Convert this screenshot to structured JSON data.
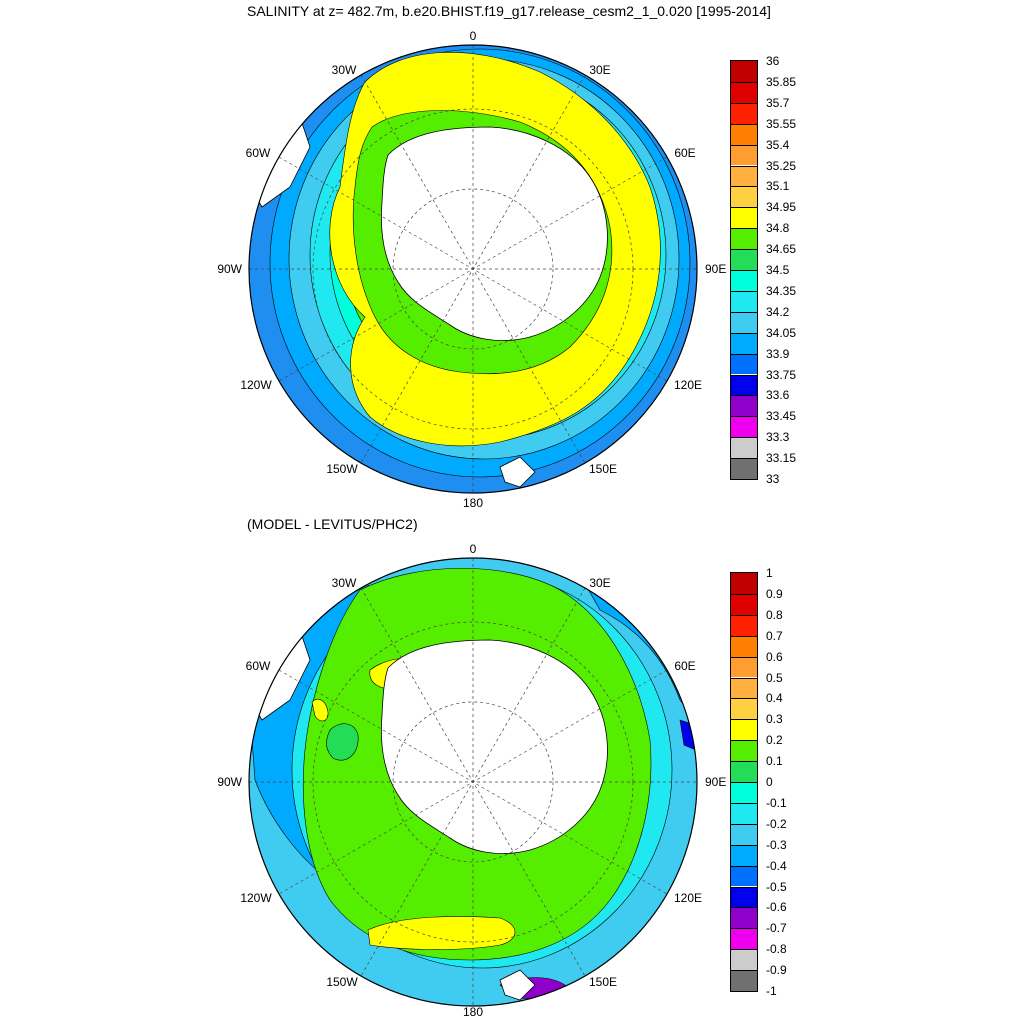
{
  "top_panel": {
    "title": "SALINITY at z= 482.7m, b.e20.BHIST.f19_g17.release_cesm2_1_0.020 [1995-2014]",
    "lon_labels": [
      "0",
      "30E",
      "60E",
      "90E",
      "120E",
      "150E",
      "180",
      "150W",
      "120W",
      "90W",
      "60W",
      "30W"
    ],
    "colorbar": {
      "labels": [
        "36",
        "35.85",
        "35.7",
        "35.55",
        "35.4",
        "35.25",
        "35.1",
        "34.95",
        "34.8",
        "34.65",
        "34.5",
        "34.35",
        "34.2",
        "34.05",
        "33.9",
        "33.75",
        "33.6",
        "33.45",
        "33.3",
        "33.15",
        "33"
      ],
      "colors": [
        "#c00000",
        "#e00000",
        "#ff2000",
        "#ff8000",
        "#ff9e30",
        "#ffb040",
        "#ffd040",
        "#ffff00",
        "#55ee00",
        "#22dd55",
        "#00ffdd",
        "#20e8f0",
        "#40ccf0",
        "#00aaff",
        "#0070ff",
        "#0000ee",
        "#9000cc",
        "#ee00ee",
        "#cccccc",
        "#707070"
      ]
    }
  },
  "bottom_panel": {
    "title": "(MODEL - LEVITUS/PHC2)",
    "lon_labels": [
      "0",
      "30E",
      "60E",
      "90E",
      "120E",
      "150E",
      "180",
      "150W",
      "120W",
      "90W",
      "60W",
      "30W"
    ],
    "colorbar": {
      "labels": [
        "1",
        "0.9",
        "0.8",
        "0.7",
        "0.6",
        "0.5",
        "0.4",
        "0.3",
        "0.2",
        "0.1",
        "0",
        "-0.1",
        "-0.2",
        "-0.3",
        "-0.4",
        "-0.5",
        "-0.6",
        "-0.7",
        "-0.8",
        "-0.9",
        "-1"
      ],
      "colors": [
        "#c00000",
        "#e00000",
        "#ff2000",
        "#ff8000",
        "#ff9e30",
        "#ffb040",
        "#ffd040",
        "#ffff00",
        "#55ee00",
        "#22dd55",
        "#00ffdd",
        "#20e8f0",
        "#40ccf0",
        "#00aaff",
        "#0070ff",
        "#0000ee",
        "#9000cc",
        "#ee00ee",
        "#cccccc",
        "#707070"
      ]
    }
  }
}
